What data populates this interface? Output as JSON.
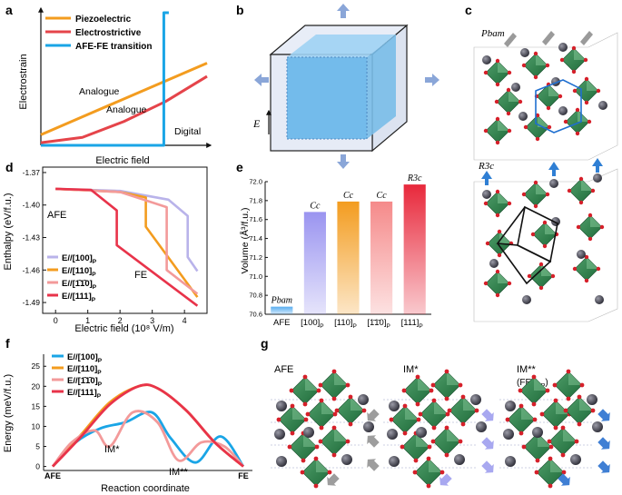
{
  "colors": {
    "piezo": "#f39c1f",
    "electro": "#e5444a",
    "afefe": "#1aa5e6",
    "e100": "#b9b3ea",
    "e110": "#f39c1f",
    "e1m10": "#f39a9a",
    "e111": "#e8334a"
  },
  "panel_a": {
    "label": "a",
    "ylabel": "Electrostrain",
    "xlabel": "Electric field",
    "legend": [
      "Piezoelectric",
      "Electrostrictive",
      "AFE-FE transition"
    ],
    "annotations": [
      "Analogue",
      "Analogue",
      "Digital"
    ]
  },
  "panel_b": {
    "label": "b",
    "field_label": "E"
  },
  "panel_c": {
    "label": "c",
    "top_phase": "Pbam",
    "bottom_phase": "R3c"
  },
  "panel_d": {
    "label": "d",
    "ylabel": "Enthalpy (eV/f.u.)",
    "xlabel": "Electric field (10⁸ V/m)",
    "annotations": [
      "AFE",
      "FE"
    ],
    "legend": [
      {
        "main": "E//[100]",
        "sub": "P"
      },
      {
        "main": "E//[110]",
        "sub": "P"
      },
      {
        "main": "E//[1̄1̄0]",
        "sub": "P"
      },
      {
        "main": "E//[111]",
        "sub": "P"
      }
    ]
  },
  "panel_e": {
    "label": "e",
    "ylabel": "Volume (Å³/f.u.)"
  },
  "panel_f": {
    "label": "f",
    "ylabel": "Energy (meV/f.u.)",
    "xlabel": "Reaction coordinate",
    "annotations": [
      "IM*",
      "IM**"
    ],
    "xticks": [
      "AFE",
      "FE"
    ],
    "legend": [
      {
        "main": "E//[100]",
        "sub": "P"
      },
      {
        "main": "E//[110]",
        "sub": "P"
      },
      {
        "main": "E//[1̄1̄0]",
        "sub": "P"
      },
      {
        "main": "E//[111]",
        "sub": "P"
      }
    ]
  },
  "panel_g": {
    "label": "g",
    "titles": [
      "AFE",
      "IM*",
      "IM**"
    ],
    "subtitle_main": "(FE",
    "subtitle_sub": "111P",
    "subtitle_end": ")"
  },
  "chart_data": [
    {
      "panel": "a",
      "type": "line",
      "xlabel": "Electric field",
      "ylabel": "Electrostrain",
      "series": [
        {
          "name": "Piezoelectric",
          "x": [
            0,
            1
          ],
          "y": [
            0.08,
            0.62
          ]
        },
        {
          "name": "Electrostrictive",
          "x": [
            0,
            0.25,
            0.5,
            0.75,
            1
          ],
          "y": [
            0.02,
            0.06,
            0.18,
            0.33,
            0.52
          ]
        },
        {
          "name": "AFE-FE transition",
          "x": [
            0,
            0.74,
            0.74,
            0.77
          ],
          "y": [
            0.0,
            0.0,
            1.0,
            1.0
          ]
        }
      ]
    },
    {
      "panel": "d",
      "type": "line",
      "xlabel": "Electric field (10⁸ V/m)",
      "ylabel": "Enthalpy (eV/f.u.)",
      "xlim": [
        -0.4,
        4.7
      ],
      "ylim": [
        -1.5,
        -1.365
      ],
      "xticks": [
        0,
        1,
        2,
        3,
        4
      ],
      "yticks": [
        -1.37,
        -1.4,
        -1.43,
        -1.46,
        -1.49
      ],
      "series": [
        {
          "name": "E//[100]P",
          "x": [
            0,
            2.0,
            3.5,
            4.1,
            4.1,
            4.4
          ],
          "y": [
            -1.385,
            -1.387,
            -1.395,
            -1.41,
            -1.448,
            -1.461
          ]
        },
        {
          "name": "E//[110]P",
          "x": [
            0,
            2.0,
            2.8,
            2.8,
            4.4
          ],
          "y": [
            -1.385,
            -1.388,
            -1.393,
            -1.42,
            -1.485
          ]
        },
        {
          "name": "E//[1̄1̄0]P",
          "x": [
            0,
            2.0,
            3.45,
            3.45,
            4.4
          ],
          "y": [
            -1.385,
            -1.388,
            -1.402,
            -1.46,
            -1.482
          ]
        },
        {
          "name": "E//[111]P",
          "x": [
            0,
            1.1,
            1.9,
            1.9,
            4.4
          ],
          "y": [
            -1.385,
            -1.386,
            -1.405,
            -1.437,
            -1.493
          ]
        }
      ]
    },
    {
      "panel": "e",
      "type": "bar",
      "ylabel": "Volume (Å³/f.u.)",
      "ylim": [
        70.6,
        72.0
      ],
      "yticks": [
        70.6,
        70.8,
        71.0,
        71.2,
        71.4,
        71.6,
        71.8,
        72.0
      ],
      "categories": [
        {
          "main": "AFE",
          "sub": ""
        },
        {
          "main": "[100]",
          "sub": "P"
        },
        {
          "main": "[110]",
          "sub": "P"
        },
        {
          "main": "[1̄1̄0]",
          "sub": "P"
        },
        {
          "main": "[111]",
          "sub": "P"
        }
      ],
      "values": [
        70.68,
        71.68,
        71.79,
        71.79,
        71.97
      ],
      "bar_labels": [
        "Pbam",
        "Cc",
        "Cc",
        "Cc",
        "R3c"
      ],
      "bar_colors": [
        "#5aaef0",
        "#9a94f0",
        "#f39c1f",
        "#f58a8a",
        "#e8283b"
      ]
    },
    {
      "panel": "f",
      "type": "line",
      "xlabel": "Reaction coordinate",
      "ylabel": "Energy (meV/f.u.)",
      "xlim": [
        0,
        1
      ],
      "ylim": [
        -1,
        28
      ],
      "yticks": [
        0,
        5,
        10,
        15,
        20,
        25
      ],
      "series": [
        {
          "name": "E//[100]P",
          "x": [
            0,
            0.12,
            0.25,
            0.38,
            0.52,
            0.62,
            0.75,
            0.88,
            1.0
          ],
          "y": [
            0,
            6,
            9.5,
            11,
            13.5,
            7,
            1,
            7.5,
            0
          ]
        },
        {
          "name": "E//[110]P",
          "x": [
            0,
            0.15,
            0.3,
            0.45,
            0.55,
            0.7,
            0.85,
            1.0
          ],
          "y": [
            0,
            8,
            16,
            20,
            19.5,
            14,
            6,
            0
          ]
        },
        {
          "name": "E//[1̄1̄0]P",
          "x": [
            0,
            0.1,
            0.22,
            0.3,
            0.42,
            0.55,
            0.66,
            0.78,
            0.9,
            1.0
          ],
          "y": [
            0,
            6,
            9,
            5,
            13.5,
            11,
            1.5,
            6,
            5,
            0
          ]
        },
        {
          "name": "E//[111]P",
          "x": [
            0,
            0.15,
            0.3,
            0.45,
            0.55,
            0.7,
            0.85,
            1.0
          ],
          "y": [
            0,
            7.5,
            15.5,
            20,
            19.5,
            14,
            6,
            0
          ]
        }
      ]
    }
  ]
}
